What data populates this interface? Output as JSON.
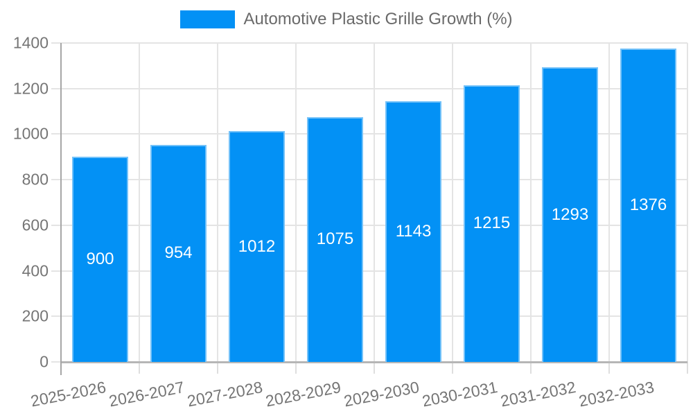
{
  "colors": {
    "bar_fill": "#0391f5",
    "bar_border": "rgba(255,255,255,0.45)",
    "grid_line": "#e4e4e4",
    "axis_line": "#a6a6a6",
    "baseline": "#b6b6b6",
    "tick_line": "#dedede",
    "tick_text": "#757575",
    "legend_text": "#6a6a6a",
    "value_text": "#ffffff",
    "background": "#ffffff"
  },
  "chart_data": {
    "type": "bar",
    "title": "",
    "legend": [
      "Automotive Plastic Grille Growth (%)"
    ],
    "legend_position": "top",
    "categories": [
      "2025-2026",
      "2026-2027",
      "2027-2028",
      "2028-2029",
      "2029-2030",
      "2030-2031",
      "2031-2032",
      "2032-2033"
    ],
    "series": [
      {
        "name": "Automotive Plastic Grille Growth (%)",
        "values": [
          900,
          954,
          1012,
          1075,
          1143,
          1215,
          1293,
          1376
        ]
      }
    ],
    "xlabel": "",
    "ylabel": "",
    "ylim": [
      0,
      1400
    ],
    "yticks": [
      0,
      200,
      400,
      600,
      800,
      1000,
      1200,
      1400
    ],
    "grid": true,
    "value_label_position": "inside-center",
    "x_tick_rotation_deg": -11
  }
}
